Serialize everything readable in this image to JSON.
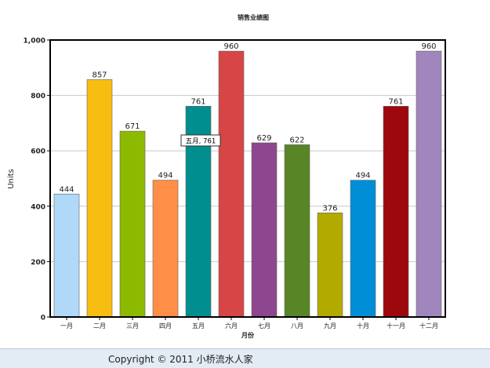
{
  "chart_data": {
    "type": "bar",
    "title": "销售业绩图",
    "xlabel": "月份",
    "ylabel": "Units",
    "categories": [
      "一月",
      "二月",
      "三月",
      "四月",
      "五月",
      "六月",
      "七月",
      "八月",
      "九月",
      "十月",
      "十一月",
      "十二月"
    ],
    "values": [
      444,
      857,
      671,
      494,
      761,
      960,
      629,
      622,
      376,
      494,
      761,
      960
    ],
    "colors": [
      "#b0d8f8",
      "#f7bd10",
      "#8cba00",
      "#ff8e46",
      "#008e8e",
      "#d64646",
      "#8e468e",
      "#588526",
      "#b3aa00",
      "#008ed6",
      "#9d080d",
      "#a186be"
    ],
    "ylim": [
      0,
      1000
    ],
    "yticks": [
      "0",
      "200",
      "400",
      "600",
      "800",
      "1,000"
    ],
    "grid": true,
    "tooltip": "五月, 761"
  },
  "footer": {
    "copyright": "Copyright © 2011 小桥流水人家"
  }
}
